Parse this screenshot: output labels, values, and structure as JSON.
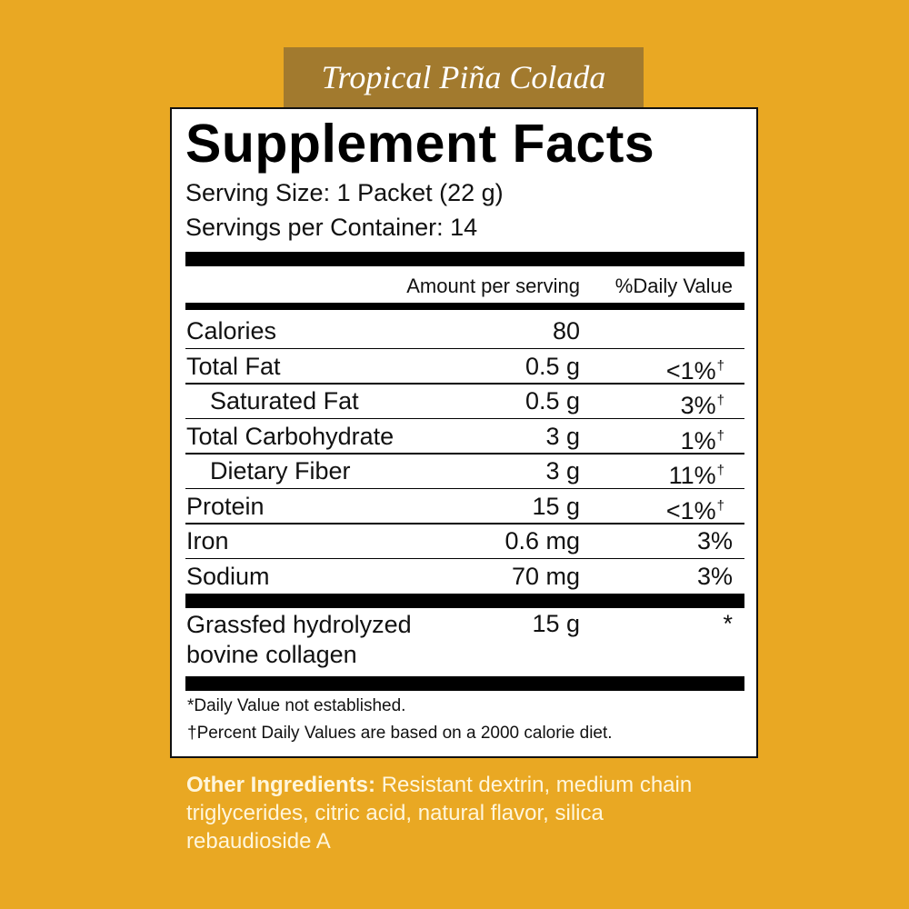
{
  "flavor": "Tropical Piña Colada",
  "title": "Supplement Facts",
  "serving_size": "Serving Size: 1 Packet (22 g)",
  "servings_per_container": "Servings per Container: 14",
  "table": {
    "header": [
      "Amount per serving",
      "%Daily Value"
    ],
    "rows": [
      {
        "name": "Calories",
        "amount": "80"
      },
      {
        "name": "Total Fat",
        "amount": "0.5 g",
        "dv": "<1%",
        "mark": "†"
      },
      {
        "name": "Saturated Fat",
        "amount": "0.5 g",
        "dv": "3%",
        "mark": "†",
        "indent": true
      },
      {
        "name": "Total Carbohydrate",
        "amount": "3 g",
        "dv": "1%",
        "mark": "†"
      },
      {
        "name": "Dietary Fiber",
        "amount": "3 g",
        "dv": "11%",
        "mark": "†",
        "indent": true
      },
      {
        "name": "Protein",
        "amount": "15 g",
        "dv": "<1%",
        "mark": "†"
      },
      {
        "name": "Iron",
        "amount": "0.6 mg",
        "dv": "3%"
      },
      {
        "name": "Sodium",
        "amount": "70 mg",
        "dv": "3%"
      }
    ],
    "other_rows": [
      {
        "name": "Grassfed hydrolyzed bovine collagen",
        "amount": "15 g",
        "dv": "*"
      }
    ]
  },
  "footnotes": [
    "*Daily Value not established.",
    "†Percent Daily Values are based on a 2000 calorie diet."
  ],
  "other_ingredients": {
    "label": "Other Ingredients:",
    "text": "Resistant dextrin, medium chain triglycerides, citric acid, natural flavor, silica  rebaudioside A"
  }
}
